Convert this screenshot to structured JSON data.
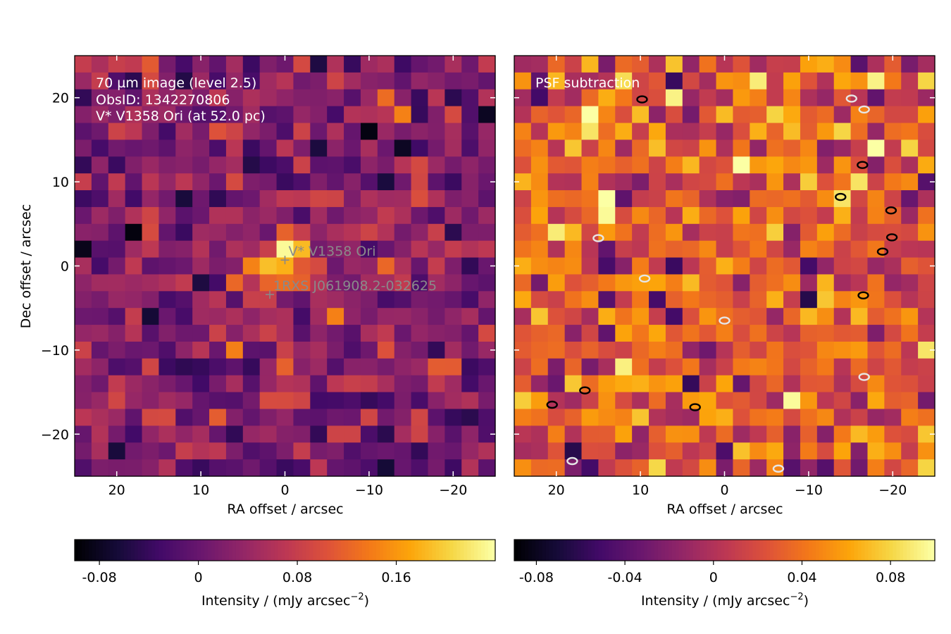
{
  "chart_data": [
    {
      "type": "heatmap",
      "annotation_lines": [
        "70 µm image (level 2.5)",
        "ObsID: 1342270806",
        "V* V1358 Ori (at 52.0 pc)"
      ],
      "xlabel": "RA offset / arcsec",
      "ylabel": "Dec offset / arcsec",
      "xlim": [
        25,
        -25
      ],
      "ylim": [
        -25,
        25
      ],
      "x_ticks": [
        20,
        10,
        0,
        -10,
        -20
      ],
      "y_ticks": [
        20,
        10,
        0,
        -10,
        -20
      ],
      "x_tick_labels": [
        "20",
        "10",
        "0",
        "−10",
        "−20"
      ],
      "y_tick_labels": [
        "20",
        "10",
        "0",
        "−10",
        "−20"
      ],
      "colormap": "inferno",
      "grid": false,
      "grid_size": 25,
      "vmin": -0.1,
      "vmax": 0.24,
      "seed": 7,
      "background_mean": 0.02,
      "background_std": 0.04,
      "source_peak": 0.22,
      "source_sigma_arcsec": 2.5,
      "markers": [
        {
          "label": "V* V1358 Ori",
          "ra": 0,
          "dec": 0.7
        },
        {
          "label": "1RXS J061908.2-032625",
          "ra": 1.8,
          "dec": -3.4
        }
      ],
      "colorbar": {
        "label": "Intensity / (mJy arcsec⁻²)",
        "label_main": "Intensity / (mJy arcsec",
        "label_sup": "−2",
        "label_end": ")",
        "min": -0.1,
        "max": 0.24,
        "ticks": [
          -0.08,
          0,
          0.08,
          0.16
        ],
        "tick_labels": [
          "-0.08",
          "0",
          "0.08",
          "0.16"
        ]
      }
    },
    {
      "type": "heatmap",
      "annotation_lines": [
        "PSF subtraction"
      ],
      "xlabel": "RA offset / arcsec",
      "xlim": [
        25,
        -25
      ],
      "ylim": [
        -25,
        25
      ],
      "x_ticks": [
        20,
        10,
        0,
        -10,
        -20
      ],
      "x_tick_labels": [
        "20",
        "10",
        "0",
        "−10",
        "−20"
      ],
      "colormap": "inferno",
      "grid": false,
      "grid_size": 25,
      "vmin": -0.09,
      "vmax": 0.1,
      "seed": 23,
      "background_mean": 0.025,
      "background_std": 0.03,
      "contours": [
        {
          "level": "positive",
          "color": "#000000",
          "points": [
            [
              9.8,
              19.8
            ],
            [
              -13.8,
              8.2
            ],
            [
              -19.8,
              6.6
            ],
            [
              -18.8,
              1.7
            ],
            [
              -19.9,
              3.4
            ],
            [
              -16.5,
              -3.5
            ],
            [
              -16.4,
              12
            ],
            [
              20.5,
              -16.5
            ],
            [
              3.5,
              -16.8
            ],
            [
              16.6,
              -14.8
            ]
          ]
        },
        {
          "level": "negative",
          "color": "#e6e6e6",
          "points": [
            [
              -16.6,
              18.6
            ],
            [
              -15.1,
              19.9
            ],
            [
              15,
              3.3
            ],
            [
              9.5,
              -1.5
            ],
            [
              0,
              -6.5
            ],
            [
              -16.6,
              -13.2
            ],
            [
              18.1,
              -23.2
            ],
            [
              -6.4,
              -24.1
            ]
          ]
        }
      ],
      "colorbar": {
        "label": "Intensity / (mJy arcsec⁻²)",
        "label_main": "Intensity / (mJy arcsec",
        "label_sup": "−2",
        "label_end": ")",
        "min": -0.09,
        "max": 0.1,
        "ticks": [
          -0.08,
          -0.04,
          0,
          0.04,
          0.08
        ],
        "tick_labels": [
          "-0.08",
          "-0.04",
          "0",
          "0.04",
          "0.08"
        ]
      }
    }
  ]
}
